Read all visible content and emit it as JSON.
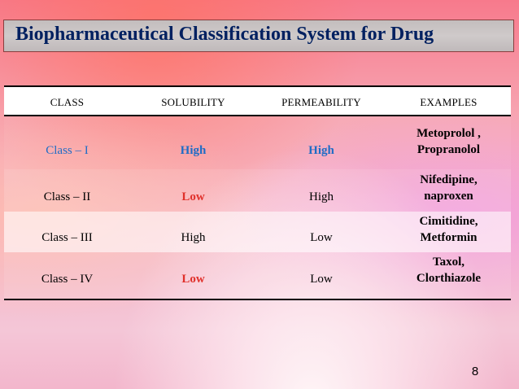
{
  "slide": {
    "title": "Biopharmaceutical Classification System for Drug",
    "page_number": "8"
  },
  "table": {
    "headers": {
      "class": "CLASS",
      "solubility": "SOLUBILITY",
      "permeability": "PERMEABILITY",
      "examples": "EXAMPLES"
    },
    "rows": [
      {
        "class": "Class – I",
        "solubility": "High",
        "permeability": "High",
        "examples_line1": "Metoprolol ,",
        "examples_line2": "Propranolol"
      },
      {
        "class": "Class – II",
        "solubility": "Low",
        "permeability": "High",
        "examples_line1": "Nifedipine,",
        "examples_line2": "naproxen"
      },
      {
        "class": "Class – III",
        "solubility": "High",
        "permeability": "Low",
        "examples_line1": "Cimitidine,",
        "examples_line2": "Metformin"
      },
      {
        "class": "Class – IV",
        "solubility": "Low",
        "permeability": "Low",
        "examples_line1": "Taxol,",
        "examples_line2": "Clorthiazole"
      }
    ]
  },
  "colors": {
    "title_text": "#002060",
    "class_i_text": "#1f6cc6",
    "low_solubility_text": "#e0302a"
  }
}
